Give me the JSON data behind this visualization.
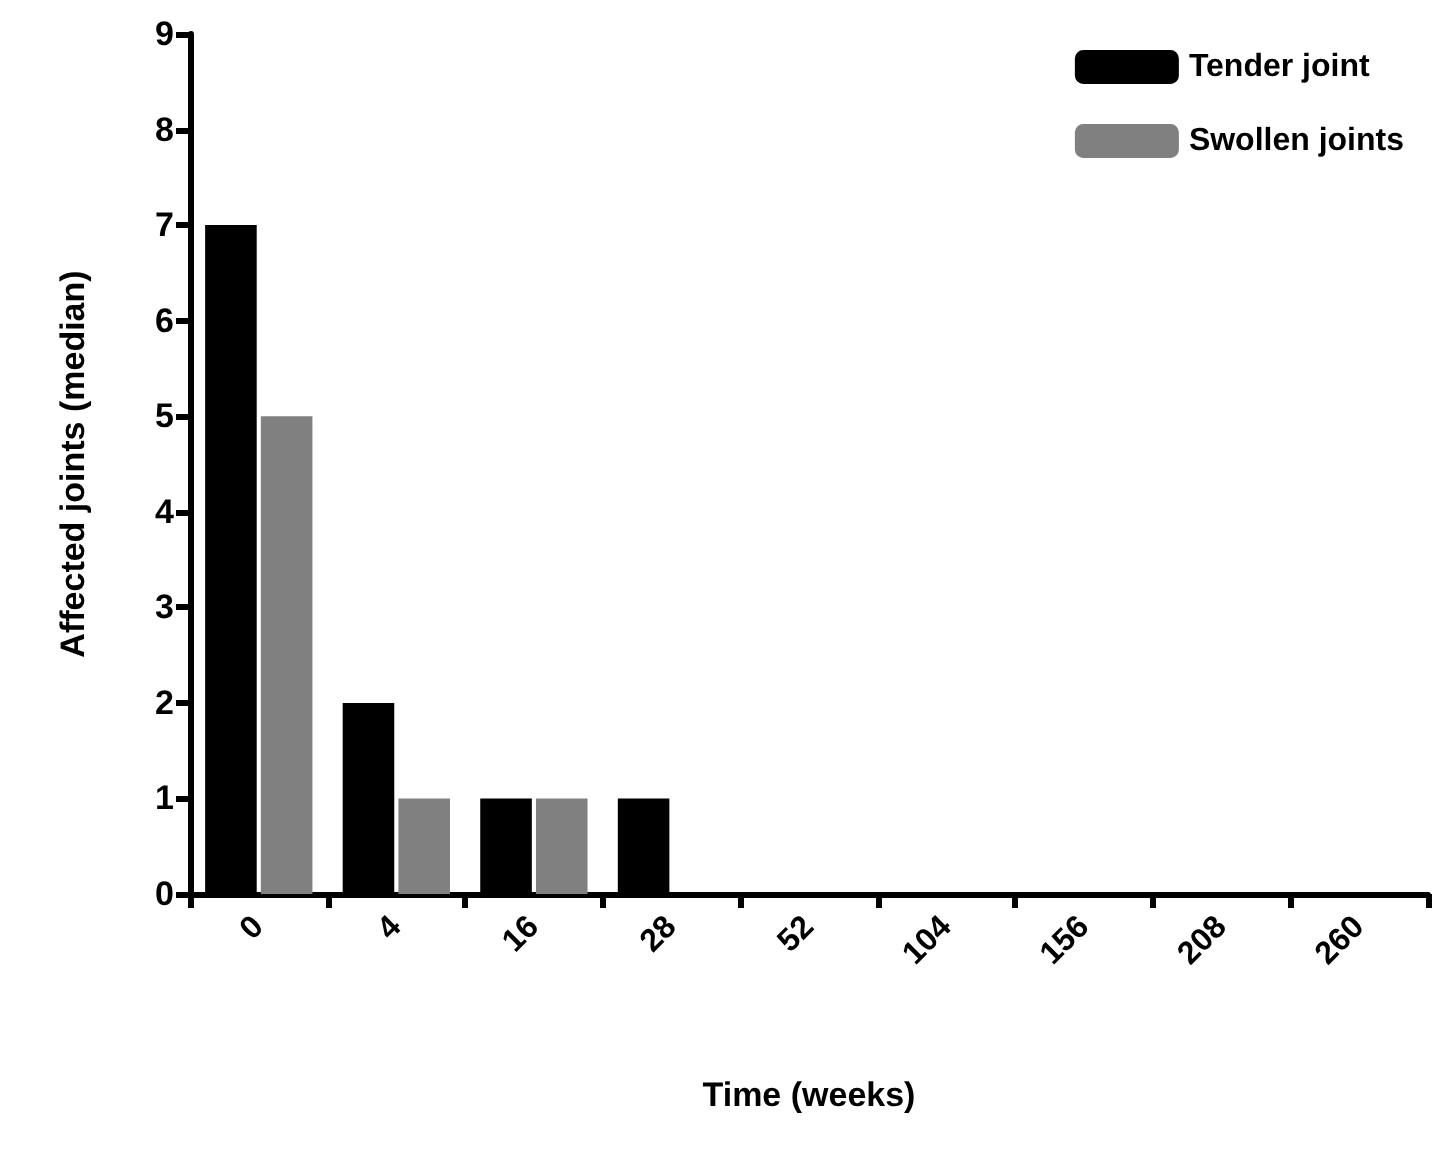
{
  "chart_data": {
    "type": "bar",
    "xlabel": "Time (weeks)",
    "ylabel": "Affected joints (median)",
    "categories": [
      "0",
      "4",
      "16",
      "28",
      "52",
      "104",
      "156",
      "208",
      "260"
    ],
    "series": [
      {
        "name": "Tender joint",
        "color": "#000000",
        "values": [
          7,
          2,
          1,
          1,
          0,
          0,
          0,
          0,
          0
        ]
      },
      {
        "name": "Swollen joints",
        "color": "#808080",
        "values": [
          5,
          1,
          1,
          0,
          0,
          0,
          0,
          0,
          0
        ]
      }
    ],
    "ylim": [
      0,
      9
    ],
    "yticks": [
      0,
      1,
      2,
      3,
      4,
      5,
      6,
      7,
      8,
      9
    ],
    "grid": false,
    "legend": "top right"
  }
}
